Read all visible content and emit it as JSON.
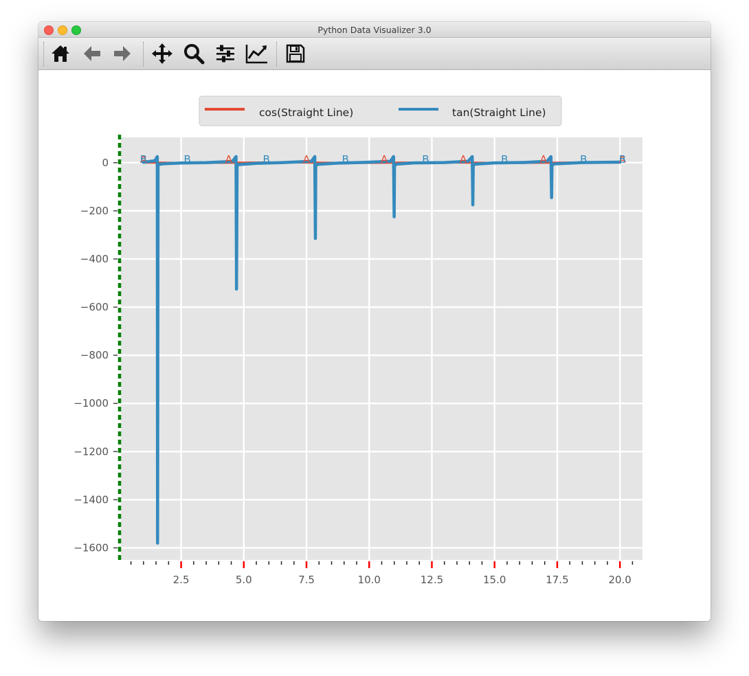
{
  "window": {
    "title": "Python Data Visualizer 3.0"
  },
  "toolbar": {
    "buttons": [
      {
        "name": "home-icon",
        "tooltip": "Home"
      },
      {
        "name": "back-arrow-icon",
        "tooltip": "Back"
      },
      {
        "name": "forward-arrow-icon",
        "tooltip": "Forward"
      },
      {
        "name": "pan-icon",
        "tooltip": "Pan"
      },
      {
        "name": "zoom-icon",
        "tooltip": "Zoom"
      },
      {
        "name": "subplots-icon",
        "tooltip": "Subplots"
      },
      {
        "name": "edit-axis-icon",
        "tooltip": "Customize"
      },
      {
        "name": "save-icon",
        "tooltip": "Save"
      }
    ]
  },
  "colors": {
    "series_cos": "#e24a33",
    "series_tan": "#348abd",
    "plot_background": "#e5e5e5",
    "grid": "#ffffff",
    "left_spine": "#008000",
    "x_major_tick": "#ff0000"
  },
  "chart_data": {
    "type": "line",
    "xlim": [
      0.1,
      20.9
    ],
    "ylim": [
      -1650,
      105
    ],
    "grid": true,
    "legend_placement": "top-center",
    "x_ticks": [
      2.5,
      5.0,
      7.5,
      10.0,
      12.5,
      15.0,
      17.5,
      20.0
    ],
    "x_tick_labels": [
      "2.5",
      "5.0",
      "7.5",
      "10.0",
      "12.5",
      "15.0",
      "17.5",
      "20.0"
    ],
    "y_ticks": [
      0,
      -200,
      -400,
      -600,
      -800,
      -1000,
      -1200,
      -1400,
      -1600
    ],
    "y_tick_labels": [
      "0",
      "−200",
      "−400",
      "−600",
      "−800",
      "−1000",
      "−1200",
      "−1400",
      "−1600"
    ],
    "series": [
      {
        "name": "cos(Straight Line)",
        "color": "#e24a33",
        "x": [
          1.0,
          2.0,
          3.0,
          4.0,
          5.0,
          6.0,
          7.0,
          8.0,
          9.0,
          10.0,
          11.0,
          12.0,
          13.0,
          14.0,
          15.0,
          16.0,
          17.0,
          18.0,
          19.0,
          20.0
        ],
        "y": [
          0.54,
          -0.42,
          -0.99,
          -0.65,
          0.28,
          0.96,
          0.75,
          -0.15,
          -0.91,
          -0.84,
          0.0,
          0.84,
          0.91,
          0.14,
          -0.76,
          -0.96,
          -0.28,
          0.66,
          0.99,
          0.41
        ]
      },
      {
        "name": "tan(Straight Line)",
        "color": "#348abd",
        "x": [
          1.0,
          1.45,
          1.55,
          1.56,
          1.58,
          1.6,
          1.75,
          2.5,
          3.5,
          4.55,
          4.69,
          4.71,
          4.73,
          4.78,
          5.5,
          6.5,
          7.7,
          7.83,
          7.855,
          7.87,
          7.95,
          8.7,
          9.8,
          10.85,
          10.97,
          10.995,
          11.01,
          11.1,
          11.8,
          13.0,
          13.95,
          14.11,
          14.135,
          14.15,
          14.25,
          15.0,
          16.2,
          17.1,
          17.25,
          17.275,
          17.29,
          17.4,
          18.5,
          20.0
        ],
        "y": [
          1.56,
          8,
          25,
          -1580,
          -12,
          -8,
          -5,
          -1.5,
          0.4,
          5,
          25,
          -525,
          -15,
          -8,
          -3,
          0.2,
          6,
          25,
          -315,
          -12,
          -7,
          -2,
          1.2,
          6,
          25,
          -225,
          -12,
          -6,
          -1,
          0.5,
          6,
          25,
          -175,
          -10,
          -6,
          -1,
          0.8,
          6,
          25,
          -145,
          -10,
          -5,
          0.5,
          2.2
        ]
      }
    ],
    "annotations": [
      {
        "text": "A",
        "x": 1.0,
        "y": 0,
        "color": "#e24a33"
      },
      {
        "text": "B",
        "x": 1.0,
        "y": 0,
        "color": "#348abd"
      },
      {
        "text": "B",
        "x": 2.75,
        "y": 0,
        "color": "#348abd"
      },
      {
        "text": "A",
        "x": 4.4,
        "y": 0,
        "color": "#e24a33"
      },
      {
        "text": "B",
        "x": 5.9,
        "y": 0,
        "color": "#348abd"
      },
      {
        "text": "A",
        "x": 7.5,
        "y": 0,
        "color": "#e24a33"
      },
      {
        "text": "B",
        "x": 9.05,
        "y": 0,
        "color": "#348abd"
      },
      {
        "text": "A",
        "x": 10.6,
        "y": 0,
        "color": "#e24a33"
      },
      {
        "text": "B",
        "x": 12.25,
        "y": 0,
        "color": "#348abd"
      },
      {
        "text": "A",
        "x": 13.75,
        "y": 0,
        "color": "#e24a33"
      },
      {
        "text": "B",
        "x": 15.4,
        "y": 0,
        "color": "#348abd"
      },
      {
        "text": "A",
        "x": 16.95,
        "y": 0,
        "color": "#e24a33"
      },
      {
        "text": "B",
        "x": 18.55,
        "y": 0,
        "color": "#348abd"
      },
      {
        "text": "A",
        "x": 20.1,
        "y": 0,
        "color": "#e24a33"
      },
      {
        "text": "B",
        "x": 20.1,
        "y": 0,
        "color": "#348abd"
      }
    ]
  }
}
